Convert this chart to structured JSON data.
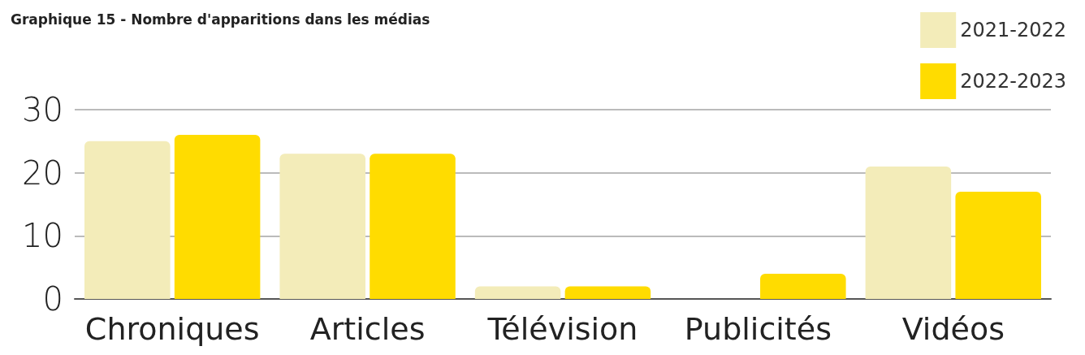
{
  "chart_data": {
    "type": "bar",
    "title": "Graphique 15 - Nombre d'apparitions dans les médias",
    "categories": [
      "Chroniques",
      "Articles",
      "Télévision",
      "Publicités",
      "Vidéos"
    ],
    "series": [
      {
        "name": "2021-2022",
        "color": "#f3ecb9",
        "values": [
          25,
          23,
          2,
          0,
          21
        ]
      },
      {
        "name": "2022-2023",
        "color": "#ffdc00",
        "values": [
          26,
          23,
          2,
          4,
          17
        ]
      }
    ],
    "ylim": [
      0,
      30
    ],
    "yticks": [
      0,
      10,
      20,
      30
    ],
    "grid": "y",
    "legend": "top right"
  }
}
